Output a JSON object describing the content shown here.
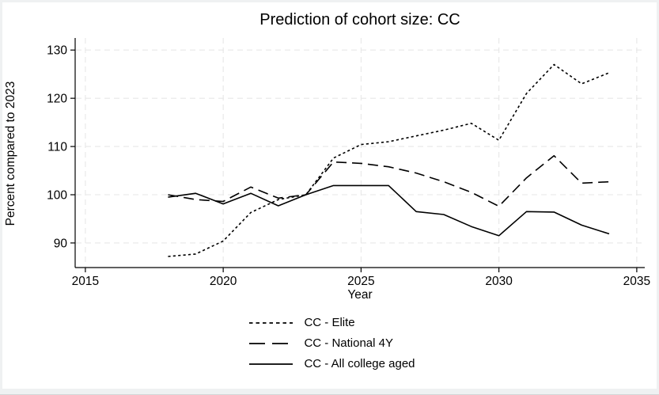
{
  "chart_data": {
    "type": "line",
    "title": "Prediction of cohort size: CC",
    "xlabel": "Year",
    "ylabel": "Percent compared to 2023",
    "xlim": [
      2014.63,
      2035.29
    ],
    "ylim": [
      84.9,
      132.5
    ],
    "x_ticks": [
      2015,
      2020,
      2025,
      2030,
      2035
    ],
    "y_ticks": [
      90,
      100,
      110,
      120,
      130
    ],
    "grid": true,
    "legend_position": "bottom-center",
    "years": [
      2018,
      2019,
      2020,
      2021,
      2022,
      2023,
      2024,
      2025,
      2026,
      2027,
      2028,
      2029,
      2030,
      2031,
      2032,
      2033,
      2034
    ],
    "series": [
      {
        "name": "CC - Elite",
        "line_style": "dotted",
        "color": "#000000",
        "values": [
          87.2,
          87.7,
          90.4,
          96.3,
          99.0,
          100.0,
          107.6,
          110.4,
          111.0,
          112.2,
          113.4,
          114.8,
          111.3,
          121.0,
          127.0,
          123.0,
          125.3
        ]
      },
      {
        "name": "CC - National 4Y",
        "line_style": "dashed",
        "color": "#000000",
        "values": [
          100.0,
          99.0,
          98.6,
          101.6,
          99.3,
          100.0,
          106.8,
          106.5,
          105.8,
          104.5,
          102.7,
          100.5,
          97.6,
          103.5,
          108.1,
          102.4,
          102.7
        ]
      },
      {
        "name": "CC - All college aged",
        "line_style": "solid",
        "color": "#000000",
        "values": [
          99.5,
          100.3,
          98.1,
          100.3,
          97.7,
          100.0,
          101.9,
          101.9,
          101.9,
          96.5,
          95.9,
          93.4,
          91.5,
          96.5,
          96.4,
          93.7,
          91.9
        ]
      }
    ]
  },
  "colors": {
    "line": "#000000",
    "grid": "#e7e7e7",
    "axis": "#000000",
    "surface": "#ffffff",
    "frame": "#eff1f2"
  }
}
